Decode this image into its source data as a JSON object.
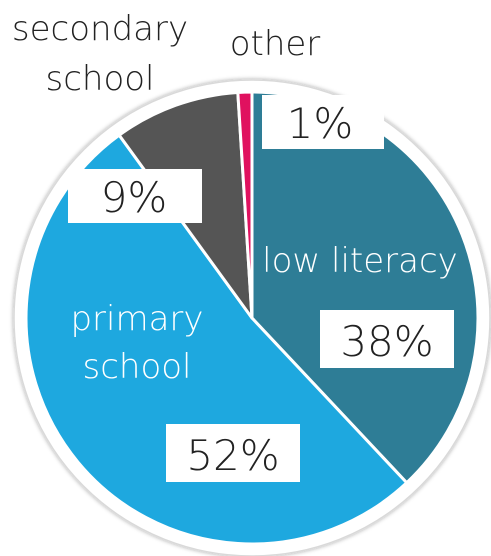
{
  "chart_data": {
    "type": "pie",
    "slices": [
      {
        "label": "low literacy",
        "value": 38,
        "value_label": "38%",
        "color": "#2e7d96"
      },
      {
        "label": "primary school",
        "value": 52,
        "value_label": "52%",
        "color": "#1ea8df"
      },
      {
        "label": "secondary school",
        "value": 9,
        "value_label": "9%",
        "color": "#555555"
      },
      {
        "label": "other",
        "value": 1,
        "value_label": "1%",
        "color": "#e0115f"
      }
    ],
    "label_lines": {
      "secondary": [
        "secondary",
        "school"
      ],
      "primary": [
        "primary",
        "school"
      ]
    }
  }
}
